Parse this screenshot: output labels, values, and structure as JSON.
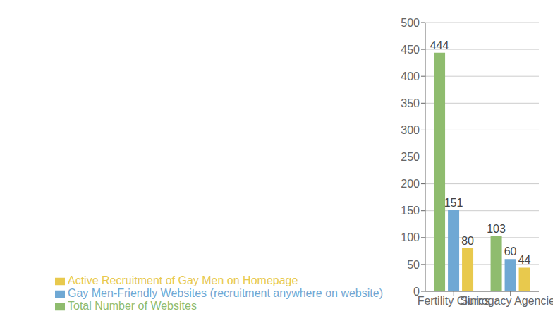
{
  "chart_data": {
    "type": "bar",
    "categories": [
      "Fertility Clinics",
      "Surrogacy Agencies"
    ],
    "series": [
      {
        "name": "Total Number of Websites",
        "color": "#8FBC6E",
        "values": [
          444,
          103
        ]
      },
      {
        "name": "Gay Men-Friendly Websites (recruitment anywhere on website)",
        "color": "#6FA8D4",
        "values": [
          151,
          60
        ]
      },
      {
        "name": "Active Recruitment of Gay Men on Homepage",
        "color": "#E8C94D",
        "values": [
          80,
          44
        ]
      }
    ],
    "ylim": [
      0,
      500
    ],
    "yticks": [
      0,
      50,
      100,
      150,
      200,
      250,
      300,
      350,
      400,
      450,
      500
    ],
    "grid": true,
    "legend": "lower left",
    "data_labels": true
  }
}
